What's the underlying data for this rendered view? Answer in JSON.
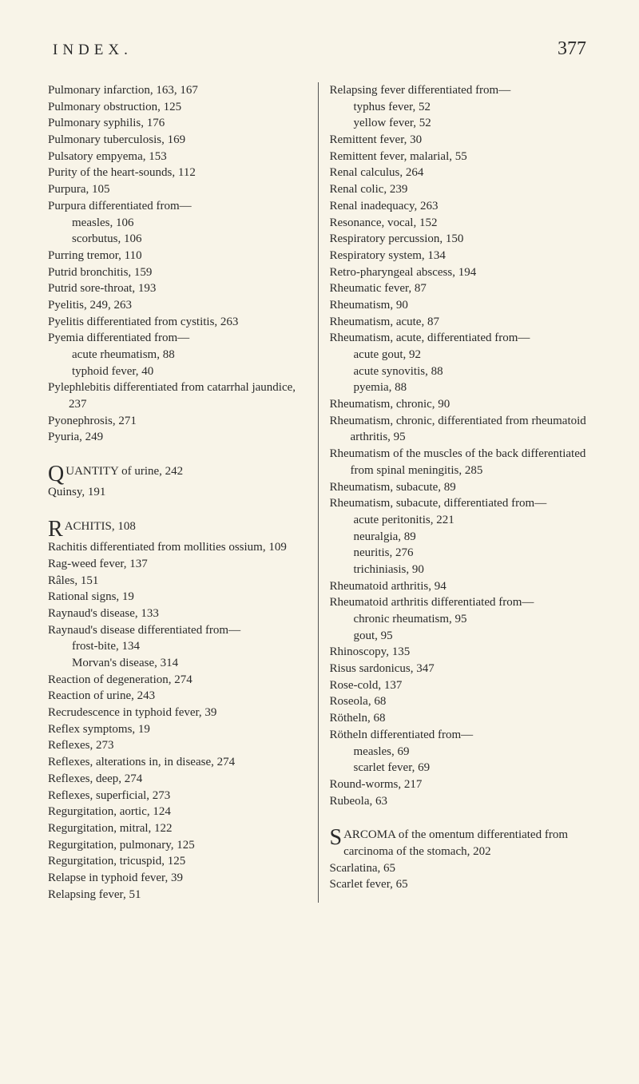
{
  "header": {
    "title": "INDEX.",
    "page_number": "377"
  },
  "left_column": [
    {
      "t": "e",
      "v": "Pulmonary infarction, 163, 167"
    },
    {
      "t": "e",
      "v": "Pulmonary obstruction, 125"
    },
    {
      "t": "e",
      "v": "Pulmonary syphilis, 176"
    },
    {
      "t": "e",
      "v": "Pulmonary tuberculosis, 169"
    },
    {
      "t": "e",
      "v": "Pulsatory empyema, 153"
    },
    {
      "t": "e",
      "v": "Purity of the heart-sounds, 112"
    },
    {
      "t": "e",
      "v": "Purpura, 105"
    },
    {
      "t": "e",
      "v": "Purpura differentiated from—"
    },
    {
      "t": "s",
      "v": "measles, 106"
    },
    {
      "t": "s",
      "v": "scorbutus, 106"
    },
    {
      "t": "e",
      "v": "Purring tremor, 110"
    },
    {
      "t": "e",
      "v": "Putrid bronchitis, 159"
    },
    {
      "t": "e",
      "v": "Putrid sore-throat, 193"
    },
    {
      "t": "e",
      "v": "Pyelitis, 249, 263"
    },
    {
      "t": "e",
      "v": "Pyelitis differentiated from cystitis, 263"
    },
    {
      "t": "e",
      "v": "Pyemia differentiated from—"
    },
    {
      "t": "s",
      "v": "acute rheumatism, 88"
    },
    {
      "t": "s",
      "v": "typhoid fever, 40"
    },
    {
      "t": "e",
      "v": "Pylephlebitis differentiated from catarrhal jaundice, 237"
    },
    {
      "t": "e",
      "v": "Pyonephrosis, 271"
    },
    {
      "t": "e",
      "v": "Pyuria, 249"
    },
    {
      "t": "gap"
    },
    {
      "t": "init",
      "cap": "Q",
      "v": "UANTITY of urine, 242"
    },
    {
      "t": "e",
      "v": "Quinsy, 191"
    },
    {
      "t": "gap"
    },
    {
      "t": "init",
      "cap": "R",
      "v": "ACHITIS, 108"
    },
    {
      "t": "e",
      "v": "Rachitis differentiated from mollities ossium, 109"
    },
    {
      "t": "e",
      "v": "Rag-weed fever, 137"
    },
    {
      "t": "e",
      "v": "Râles, 151"
    },
    {
      "t": "e",
      "v": "Rational signs, 19"
    },
    {
      "t": "e",
      "v": "Raynaud's disease, 133"
    },
    {
      "t": "e",
      "v": "Raynaud's disease differentiated from—"
    },
    {
      "t": "s",
      "v": "frost-bite, 134"
    },
    {
      "t": "s",
      "v": "Morvan's disease, 314"
    },
    {
      "t": "e",
      "v": "Reaction of degeneration, 274"
    },
    {
      "t": "e",
      "v": "Reaction of urine, 243"
    },
    {
      "t": "e",
      "v": "Recrudescence in typhoid fever, 39"
    },
    {
      "t": "e",
      "v": "Reflex symptoms, 19"
    },
    {
      "t": "e",
      "v": "Reflexes, 273"
    },
    {
      "t": "e",
      "v": "Reflexes, alterations in, in disease, 274"
    },
    {
      "t": "e",
      "v": "Reflexes, deep, 274"
    },
    {
      "t": "e",
      "v": "Reflexes, superficial, 273"
    },
    {
      "t": "e",
      "v": "Regurgitation, aortic, 124"
    },
    {
      "t": "e",
      "v": "Regurgitation, mitral, 122"
    },
    {
      "t": "e",
      "v": "Regurgitation, pulmonary, 125"
    },
    {
      "t": "e",
      "v": "Regurgitation, tricuspid, 125"
    },
    {
      "t": "e",
      "v": "Relapse in typhoid fever, 39"
    },
    {
      "t": "e",
      "v": "Relapsing fever, 51"
    }
  ],
  "right_column": [
    {
      "t": "e",
      "v": "Relapsing fever differentiated from—"
    },
    {
      "t": "s",
      "v": "typhus fever, 52"
    },
    {
      "t": "s",
      "v": "yellow fever, 52"
    },
    {
      "t": "e",
      "v": "Remittent fever, 30"
    },
    {
      "t": "e",
      "v": "Remittent fever, malarial, 55"
    },
    {
      "t": "e",
      "v": "Renal calculus, 264"
    },
    {
      "t": "e",
      "v": "Renal colic, 239"
    },
    {
      "t": "e",
      "v": "Renal inadequacy, 263"
    },
    {
      "t": "e",
      "v": "Resonance, vocal, 152"
    },
    {
      "t": "e",
      "v": "Respiratory percussion, 150"
    },
    {
      "t": "e",
      "v": "Respiratory system, 134"
    },
    {
      "t": "e",
      "v": "Retro-pharyngeal abscess, 194"
    },
    {
      "t": "e",
      "v": "Rheumatic fever, 87"
    },
    {
      "t": "e",
      "v": "Rheumatism, 90"
    },
    {
      "t": "e",
      "v": "Rheumatism, acute, 87"
    },
    {
      "t": "e",
      "v": "Rheumatism, acute, differentiated from—"
    },
    {
      "t": "s",
      "v": "acute gout, 92"
    },
    {
      "t": "s",
      "v": "acute synovitis, 88"
    },
    {
      "t": "s",
      "v": "pyemia, 88"
    },
    {
      "t": "e",
      "v": "Rheumatism, chronic, 90"
    },
    {
      "t": "e",
      "v": "Rheumatism, chronic, differentiated from rheumatoid arthritis, 95"
    },
    {
      "t": "e",
      "v": "Rheumatism of the muscles of the back differentiated from spinal meningitis, 285"
    },
    {
      "t": "e",
      "v": "Rheumatism, subacute, 89"
    },
    {
      "t": "e",
      "v": "Rheumatism, subacute, differentiated from—"
    },
    {
      "t": "s",
      "v": "acute peritonitis, 221"
    },
    {
      "t": "s",
      "v": "neuralgia, 89"
    },
    {
      "t": "s",
      "v": "neuritis, 276"
    },
    {
      "t": "s",
      "v": "trichiniasis, 90"
    },
    {
      "t": "e",
      "v": "Rheumatoid arthritis, 94"
    },
    {
      "t": "e",
      "v": "Rheumatoid arthritis differentiated from—"
    },
    {
      "t": "s",
      "v": "chronic rheumatism, 95"
    },
    {
      "t": "s",
      "v": "gout, 95"
    },
    {
      "t": "e",
      "v": "Rhinoscopy, 135"
    },
    {
      "t": "e",
      "v": "Risus sardonicus, 347"
    },
    {
      "t": "e",
      "v": "Rose-cold, 137"
    },
    {
      "t": "e",
      "v": "Roseola, 68"
    },
    {
      "t": "e",
      "v": "Rötheln, 68"
    },
    {
      "t": "e",
      "v": "Rötheln differentiated from—"
    },
    {
      "t": "s",
      "v": "measles, 69"
    },
    {
      "t": "s",
      "v": "scarlet fever, 69"
    },
    {
      "t": "e",
      "v": "Round-worms, 217"
    },
    {
      "t": "e",
      "v": "Rubeola, 63"
    },
    {
      "t": "gap"
    },
    {
      "t": "init",
      "cap": "S",
      "v": "ARCOMA of the omentum differentiated from carcinoma of the stomach, 202"
    },
    {
      "t": "e",
      "v": "Scarlatina, 65"
    },
    {
      "t": "e",
      "v": "Scarlet fever, 65"
    }
  ]
}
